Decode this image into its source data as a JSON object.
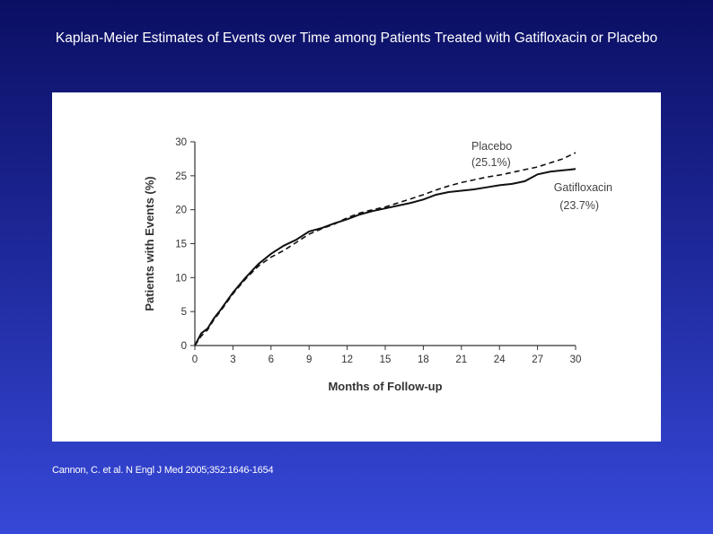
{
  "slide": {
    "title": "Kaplan-Meier Estimates of Events over Time among Patients Treated with Gatifloxacin or Placebo",
    "citation": "Cannon, C. et al. N Engl J Med 2005;352:1646-1654"
  },
  "colors": {
    "background_top": "#0b0f63",
    "background_bottom": "#3648d8",
    "panel": "#ffffff",
    "line": "#111111"
  },
  "chart_data": {
    "type": "line",
    "title": "",
    "xlabel": "Months of Follow-up",
    "ylabel": "Patients with Events (%)",
    "xlim": [
      0,
      30
    ],
    "ylim": [
      0,
      30
    ],
    "xticks": [
      0,
      3,
      6,
      9,
      12,
      15,
      18,
      21,
      24,
      27,
      30
    ],
    "yticks": [
      0,
      5,
      10,
      15,
      20,
      25,
      30
    ],
    "grid": false,
    "legend": "none",
    "series": [
      {
        "name": "Gatifloxacin",
        "annotation_line1": "Gatifloxacin",
        "annotation_line2": "(23.7%)",
        "style": "solid",
        "x": [
          0,
          0.5,
          1,
          1.5,
          2,
          3,
          4,
          5,
          6,
          7,
          8,
          9,
          10,
          11,
          12,
          13,
          14,
          15,
          16,
          17,
          18,
          19,
          20,
          21,
          22,
          23,
          24,
          25,
          26,
          27,
          28,
          29,
          30
        ],
        "y": [
          0,
          1.8,
          2.5,
          4.0,
          5.2,
          7.8,
          10.0,
          12.0,
          13.5,
          14.7,
          15.6,
          16.8,
          17.3,
          18.0,
          18.6,
          19.3,
          19.8,
          20.2,
          20.6,
          21.0,
          21.5,
          22.2,
          22.6,
          22.8,
          23.0,
          23.3,
          23.6,
          23.8,
          24.2,
          25.2,
          25.6,
          25.8,
          26.0
        ]
      },
      {
        "name": "Placebo",
        "annotation_line1": "Placebo",
        "annotation_line2": "(25.1%)",
        "style": "dashed",
        "x": [
          0,
          0.5,
          1,
          1.5,
          2,
          3,
          4,
          5,
          6,
          7,
          8,
          9,
          10,
          11,
          12,
          13,
          14,
          15,
          16,
          17,
          18,
          19,
          20,
          21,
          22,
          23,
          24,
          25,
          26,
          27,
          28,
          29,
          30
        ],
        "y": [
          0,
          1.4,
          2.3,
          3.8,
          5.0,
          7.6,
          9.8,
          11.7,
          13.0,
          14.0,
          15.2,
          16.4,
          17.2,
          17.9,
          18.8,
          19.5,
          20.0,
          20.4,
          21.0,
          21.6,
          22.2,
          22.9,
          23.5,
          24.0,
          24.4,
          24.8,
          25.1,
          25.5,
          25.9,
          26.3,
          26.9,
          27.5,
          28.4
        ]
      }
    ]
  }
}
